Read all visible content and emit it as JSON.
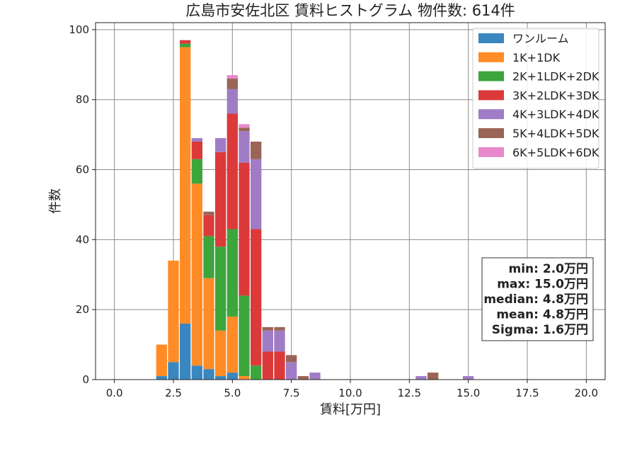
{
  "chart_data": {
    "type": "bar",
    "stacked": true,
    "title": "広島市安佐北区 賃料ヒストグラム 物件数: 614件",
    "xlabel": "賃料[万円]",
    "ylabel": "件数",
    "xlim": [
      -0.8,
      20.8
    ],
    "ylim": [
      0,
      102
    ],
    "xticks": [
      0.0,
      2.5,
      5.0,
      7.5,
      10.0,
      12.5,
      15.0,
      17.5,
      20.0
    ],
    "xtick_labels": [
      "0.0",
      "2.5",
      "5.0",
      "7.5",
      "10.0",
      "12.5",
      "15.0",
      "17.5",
      "20.0"
    ],
    "yticks": [
      0,
      20,
      40,
      60,
      80,
      100
    ],
    "ytick_labels": [
      "0",
      "20",
      "40",
      "60",
      "80",
      "100"
    ],
    "grid": true,
    "legend_position": "top-right",
    "bin_width": 0.5,
    "bin_centers": [
      2.0,
      2.5,
      3.0,
      3.5,
      4.0,
      4.5,
      5.0,
      5.5,
      6.0,
      6.5,
      7.0,
      7.5,
      8.0,
      8.5,
      13.0,
      13.5,
      15.0
    ],
    "series": [
      {
        "name": "ワンルーム",
        "color": "#3a86bf",
        "values": [
          1,
          5,
          16,
          4,
          3,
          1,
          2,
          0,
          0,
          0,
          0,
          0,
          0,
          0,
          0,
          0,
          0
        ]
      },
      {
        "name": "1K+1DK",
        "color": "#ff8c26",
        "values": [
          9,
          29,
          79,
          52,
          26,
          13,
          16,
          1,
          0,
          0,
          0,
          0,
          0,
          0,
          0,
          0,
          0
        ]
      },
      {
        "name": "2K+1LDK+2DK",
        "color": "#3ca53c",
        "values": [
          0,
          0,
          1,
          7,
          12,
          24,
          25,
          23,
          4,
          0,
          0,
          0,
          0,
          0,
          0,
          0,
          0
        ]
      },
      {
        "name": "3K+2LDK+3DK",
        "color": "#dc3a3a",
        "values": [
          0,
          0,
          1,
          5,
          6,
          27,
          33,
          38,
          39,
          8,
          8,
          0,
          0,
          0,
          0,
          0,
          0
        ]
      },
      {
        "name": "4K+3LDK+4DK",
        "color": "#a07cc6",
        "values": [
          0,
          0,
          0,
          1,
          0,
          4,
          7,
          9,
          20,
          6,
          6,
          5,
          0,
          2,
          1,
          0,
          1
        ]
      },
      {
        "name": "5K+4LDK+5DK",
        "color": "#9a6456",
        "values": [
          0,
          0,
          0,
          0,
          1,
          0,
          3,
          1,
          5,
          1,
          1,
          2,
          1,
          0,
          0,
          2,
          0
        ]
      },
      {
        "name": "6K+5LDK+6DK",
        "color": "#e888cc",
        "values": [
          0,
          0,
          0,
          0,
          0,
          0,
          1,
          1,
          0,
          0,
          0,
          0,
          0,
          0,
          0,
          0,
          0
        ]
      }
    ],
    "stats": [
      "min: 2.0万円",
      "max: 15.0万円",
      "median: 4.8万円",
      "mean: 4.8万円",
      "Sigma: 1.6万円"
    ]
  }
}
